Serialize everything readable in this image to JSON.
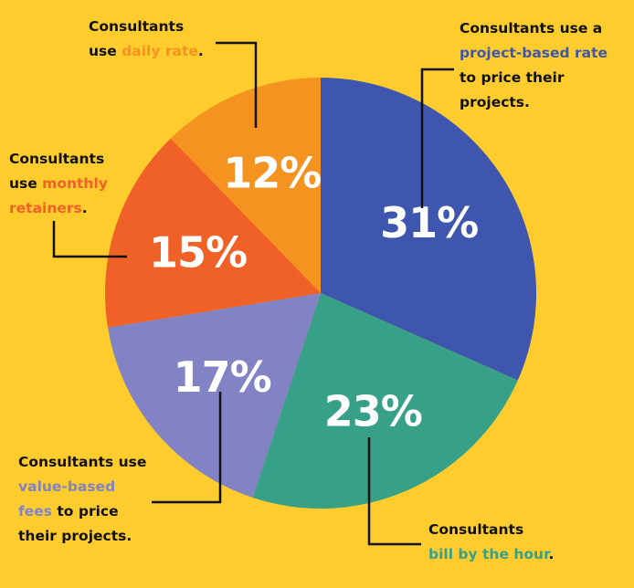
{
  "chart_data": {
    "type": "pie",
    "slices": [
      {
        "label": "project-based rate",
        "value": 31,
        "value_label": "31%",
        "color": "#3E56AD"
      },
      {
        "label": "bill by the hour",
        "value": 23,
        "value_label": "23%",
        "color": "#37A089"
      },
      {
        "label": "value-based fees",
        "value": 17,
        "value_label": "17%",
        "color": "#8183C4"
      },
      {
        "label": "monthly retainers",
        "value": 15,
        "value_label": "15%",
        "color": "#EF6126"
      },
      {
        "label": "daily rate",
        "value": 12,
        "value_label": "12%",
        "color": "#F59320"
      }
    ]
  },
  "annotations": {
    "project_based": {
      "line1": "Consultants use a",
      "highlight": "project-based rate",
      "line3": "to price their",
      "line4": "projects.",
      "color": "#3E56AD"
    },
    "hourly": {
      "line1": "Consultants",
      "highlight": "bill by the hour",
      "tail": ".",
      "color": "#37A089"
    },
    "value_based": {
      "line1": "Consultants use",
      "highlight1": "value-based",
      "highlight2": "fees",
      "after_highlight2": " to price",
      "line4": "their projects.",
      "color": "#8183C4"
    },
    "monthly": {
      "line1": "Consultants",
      "prefix2": "use ",
      "highlight1": "monthly",
      "highlight2": "retainers",
      "tail": ".",
      "color": "#EF6126"
    },
    "daily": {
      "line1": "Consultants",
      "prefix2": "use ",
      "highlight": "daily rate",
      "tail": ".",
      "color": "#F59320"
    }
  }
}
